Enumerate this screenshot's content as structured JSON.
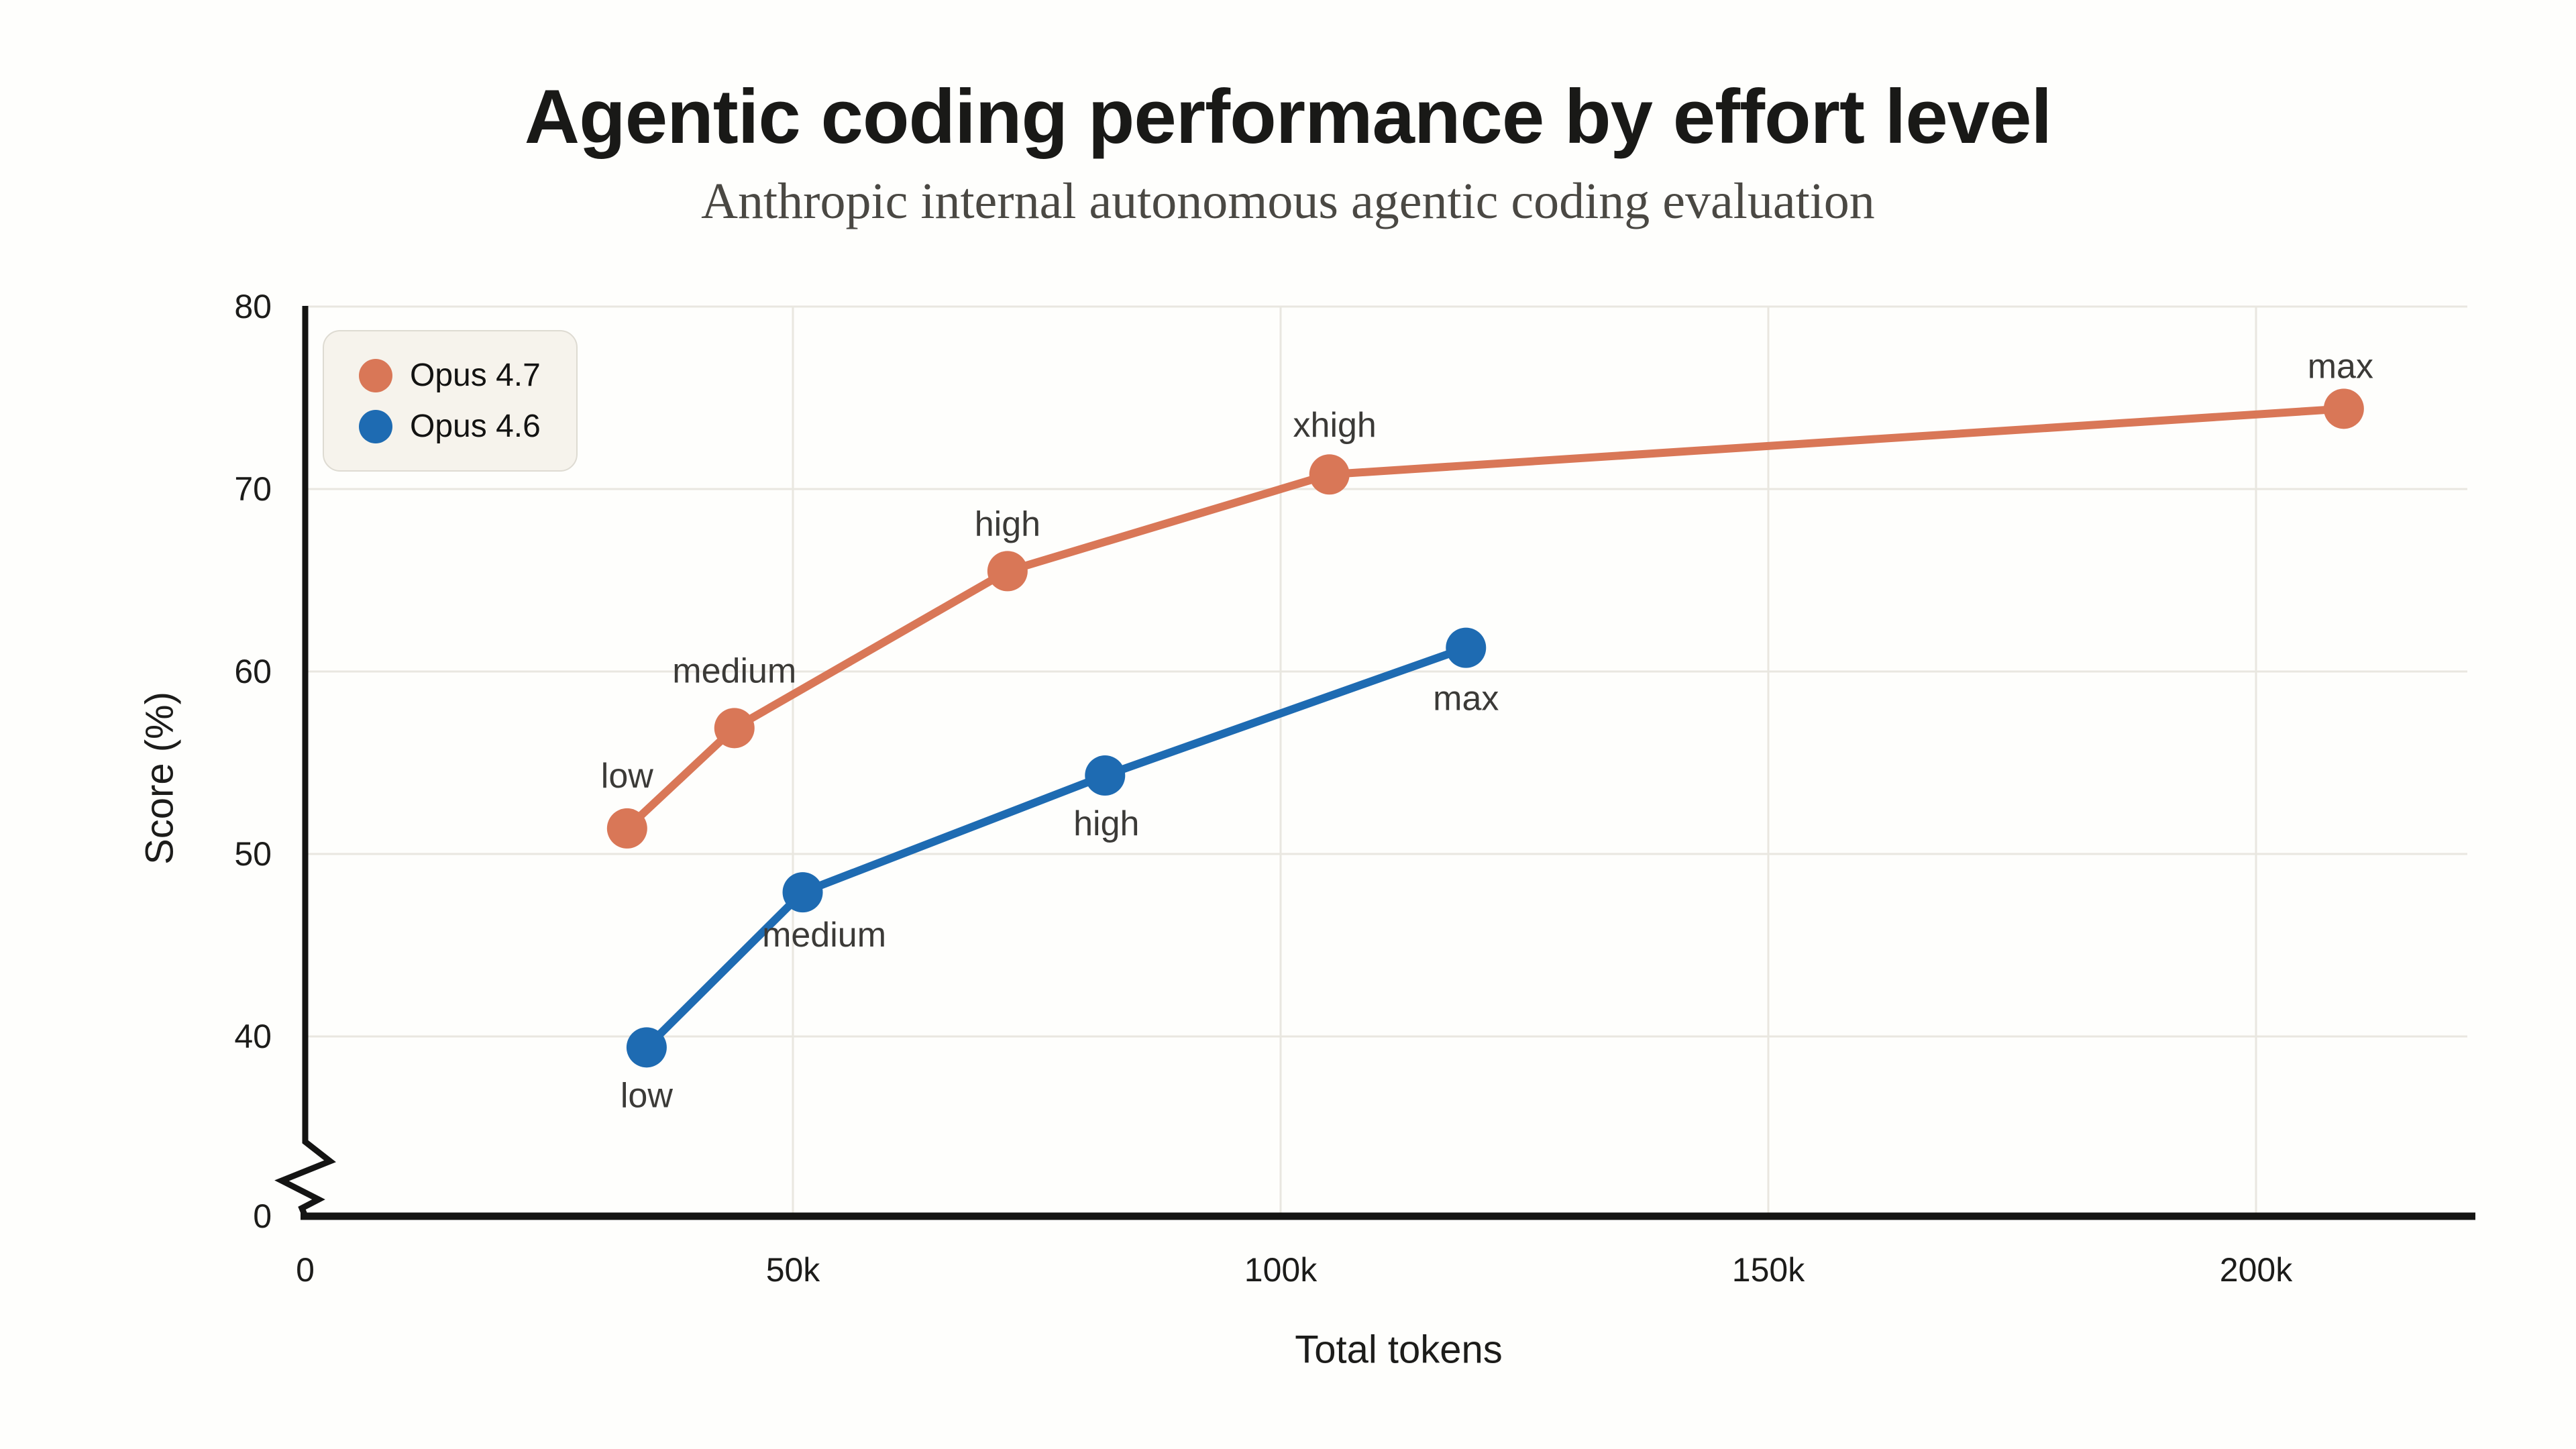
{
  "chart_data": {
    "type": "line",
    "title": "Agentic coding performance by effort level",
    "subtitle": "Anthropic internal autonomous agentic coding evaluation",
    "xlabel": "Total tokens",
    "ylabel": "Score (%)",
    "x_unit": "thousands of tokens",
    "x_range_k": [
      0,
      222
    ],
    "y_range": [
      0,
      80
    ],
    "y_axis_break": {
      "axis": "y",
      "between": [
        0,
        40
      ]
    },
    "grid": true,
    "legend_position": "top-left",
    "x_ticks": [
      {
        "value": 0,
        "label": "0",
        "grid": false
      },
      {
        "value": 50,
        "label": "50k",
        "grid": true
      },
      {
        "value": 100,
        "label": "100k",
        "grid": true
      },
      {
        "value": 150,
        "label": "150k",
        "grid": true
      },
      {
        "value": 200,
        "label": "200k",
        "grid": true
      }
    ],
    "y_ticks": [
      {
        "value": 80,
        "label": "80",
        "grid": true
      },
      {
        "value": 70,
        "label": "70",
        "grid": true
      },
      {
        "value": 60,
        "label": "60",
        "grid": true
      },
      {
        "value": 50,
        "label": "50",
        "grid": true
      },
      {
        "value": 40,
        "label": "40",
        "grid": true
      },
      {
        "value": 0,
        "label": "0",
        "grid": false
      }
    ],
    "series": [
      {
        "name": "Opus 4.7",
        "color": "#D97757",
        "points": [
          {
            "effort": "low",
            "tokens_k": 33,
            "score": 51.4,
            "label_dx": 0,
            "label_dy": -78
          },
          {
            "effort": "medium",
            "tokens_k": 44,
            "score": 56.9,
            "label_dx": 0,
            "label_dy": -85
          },
          {
            "effort": "high",
            "tokens_k": 72,
            "score": 65.5,
            "label_dx": 0,
            "label_dy": -70
          },
          {
            "effort": "xhigh",
            "tokens_k": 105,
            "score": 70.8,
            "label_dx": 8,
            "label_dy": -73
          },
          {
            "effort": "max",
            "tokens_k": 209,
            "score": 74.4,
            "label_dx": -5,
            "label_dy": -63
          }
        ]
      },
      {
        "name": "Opus 4.6",
        "color": "#1E6BB2",
        "points": [
          {
            "effort": "low",
            "tokens_k": 35,
            "score": 39.4,
            "label_dx": 0,
            "label_dy": 72
          },
          {
            "effort": "medium",
            "tokens_k": 51,
            "score": 47.9,
            "label_dx": 32,
            "label_dy": 64
          },
          {
            "effort": "high",
            "tokens_k": 82,
            "score": 54.3,
            "label_dx": 2,
            "label_dy": 72
          },
          {
            "effort": "max",
            "tokens_k": 119,
            "score": 61.3,
            "label_dx": 0,
            "label_dy": 76
          }
        ]
      }
    ]
  },
  "colors": {
    "background": "#FEFEFC",
    "grid": "#E9E7E0",
    "axis": "#141413",
    "tick_text": "#1C1C1A",
    "point_label": "#3B3A37",
    "title": "#191917",
    "subtitle": "#4A4843",
    "legend_bg": "#F6F3EC",
    "legend_border": "#DEDBD2"
  }
}
